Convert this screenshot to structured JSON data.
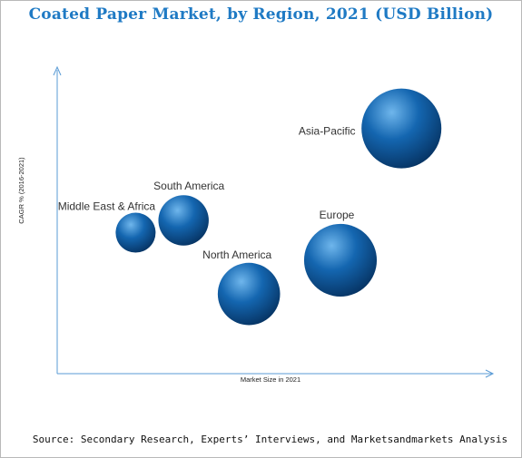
{
  "chart_data": {
    "type": "scatter",
    "title": "Coated Paper Market, by Region, 2021 (USD Billion)",
    "xlabel": "Market Size in 2021",
    "ylabel": "CAGR % (2016-2021)",
    "axis_ticks": false,
    "grid": false,
    "legend": "none",
    "points": [
      {
        "label": "Middle East & Africa",
        "x": 18,
        "y": 46,
        "size": 0.5
      },
      {
        "label": "South America",
        "x": 29,
        "y": 50,
        "size": 0.63
      },
      {
        "label": "North America",
        "x": 44,
        "y": 26,
        "size": 0.78
      },
      {
        "label": "Europe",
        "x": 65,
        "y": 37,
        "size": 0.91
      },
      {
        "label": "Asia-Pacific",
        "x": 79,
        "y": 80,
        "size": 1.0
      }
    ]
  },
  "source": "Source: Secondary Research, Experts’ Interviews, and Marketsandmarkets Analysis",
  "colors": {
    "title": "#1f7ac4",
    "axis": "#5a9bd5",
    "bubble_light": "#6fb6ec",
    "bubble_mid": "#1466b0",
    "bubble_dark": "#063261"
  }
}
